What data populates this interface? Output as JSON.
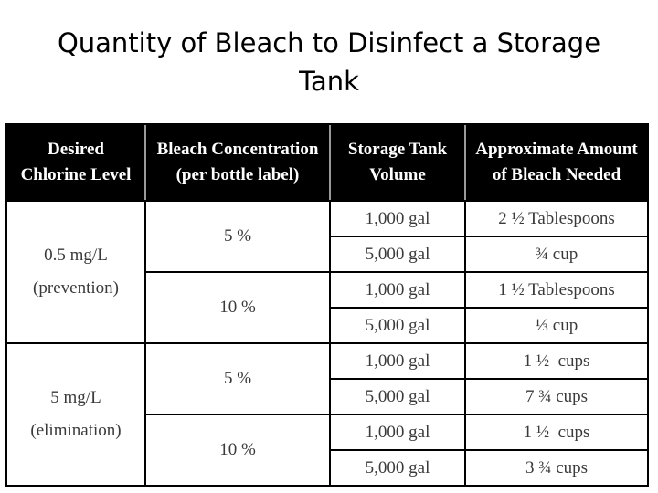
{
  "title": "Quantity of Bleach to Disinfect a Storage Tank",
  "headers": [
    [
      "Desired",
      "Chlorine Level"
    ],
    [
      "Bleach Concentration",
      "(per bottle label)"
    ],
    [
      "Storage Tank",
      "Volume"
    ],
    [
      "Approximate Amount",
      "of Bleach Needed"
    ]
  ],
  "groups": [
    {
      "level": "0.5 mg/L",
      "purpose": "(prevention)",
      "concentrations": [
        {
          "concentration": "5 %",
          "rows": [
            {
              "volume": "1,000 gal",
              "amount": "2 ½ Tablespoons"
            },
            {
              "volume": "5,000 gal",
              "amount": "¾ cup"
            }
          ]
        },
        {
          "concentration": "10 %",
          "rows": [
            {
              "volume": "1,000 gal",
              "amount": "1 ½ Tablespoons"
            },
            {
              "volume": "5,000 gal",
              "amount": "⅓ cup"
            }
          ]
        }
      ]
    },
    {
      "level": "5 mg/L",
      "purpose": "(elimination)",
      "concentrations": [
        {
          "concentration": "5 %",
          "rows": [
            {
              "volume": "1,000 gal",
              "amount": "1 ½  cups"
            },
            {
              "volume": "5,000 gal",
              "amount": "7 ¾ cups"
            }
          ]
        },
        {
          "concentration": "10 %",
          "rows": [
            {
              "volume": "1,000 gal",
              "amount": "1 ½  cups"
            },
            {
              "volume": "5,000 gal",
              "amount": "3 ¾ cups"
            }
          ]
        }
      ]
    }
  ]
}
